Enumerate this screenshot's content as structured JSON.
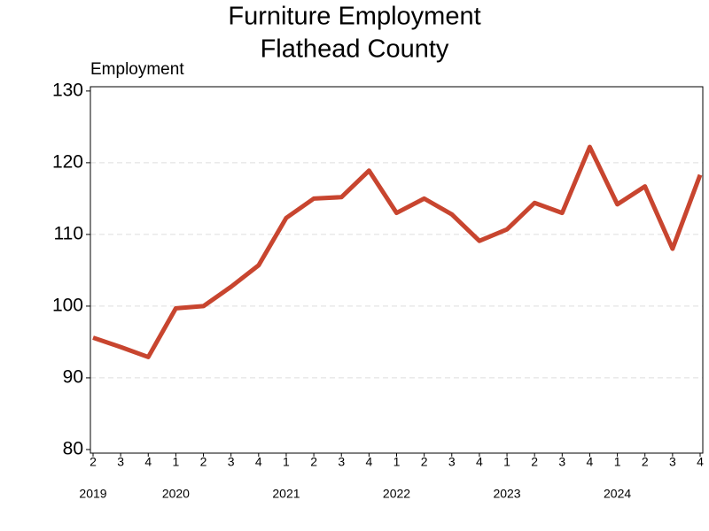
{
  "chart_data": {
    "type": "line",
    "title": [
      "Furniture Employment",
      "Flathead County"
    ],
    "y_label": "Employment",
    "categories": [
      "2",
      "3",
      "4",
      "1",
      "2",
      "3",
      "4",
      "1",
      "2",
      "3",
      "4",
      "1",
      "2",
      "3",
      "4",
      "1",
      "2",
      "3",
      "4",
      "1",
      "2",
      "3",
      "4"
    ],
    "x_groups": [
      "2019",
      null,
      null,
      "2020",
      null,
      null,
      null,
      "2021",
      null,
      null,
      null,
      "2022",
      null,
      null,
      null,
      "2023",
      null,
      null,
      null,
      "2024",
      null,
      null,
      null
    ],
    "series": [
      {
        "name": "Employment",
        "color": "#c8452f",
        "values": [
          95.6,
          94.3,
          92.9,
          99.7,
          100.0,
          102.7,
          105.7,
          112.3,
          115.0,
          115.2,
          118.9,
          113.0,
          115.0,
          112.8,
          109.1,
          110.7,
          114.4,
          113.0,
          122.2,
          114.2,
          116.7,
          108.0,
          118.3
        ]
      }
    ],
    "ylim": [
      79.5,
      130.6
    ],
    "yticks": [
      80,
      90,
      100,
      110,
      120,
      130
    ],
    "grid": true
  }
}
